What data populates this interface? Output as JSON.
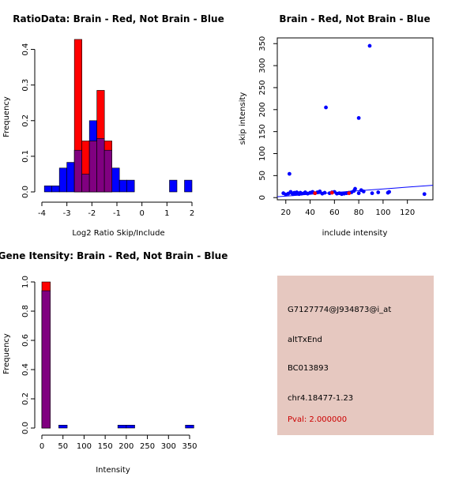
{
  "colors": {
    "red": "#ff0000",
    "blue": "#0000ff",
    "overlap": "#800080",
    "panel_bg": "#e6c8c0",
    "pval_text": "#cc0000"
  },
  "chart_data": [
    {
      "id": "ratio_hist",
      "type": "bar",
      "title": "RatioData: Brain - Red, Not Brain - Blue",
      "xlabel": "Log2 Ratio Skip/Include",
      "ylabel": "Frequency",
      "xlim": [
        -4,
        2
      ],
      "ylim": [
        0,
        0.45
      ],
      "xticks": [
        -4,
        -3,
        -2,
        -1,
        0,
        1,
        2
      ],
      "yticks": [
        0.0,
        0.1,
        0.2,
        0.3,
        0.4
      ],
      "ytick_labels": [
        "0.0",
        "0.1",
        "0.2",
        "0.3",
        "0.4"
      ],
      "bin_width": 0.3,
      "series": [
        {
          "name": "Not Brain",
          "color": "#0000ff",
          "bins": [
            {
              "x0": -3.9,
              "x1": -3.6,
              "y": 0.017
            },
            {
              "x0": -3.6,
              "x1": -3.3,
              "y": 0.017
            },
            {
              "x0": -3.3,
              "x1": -3.0,
              "y": 0.067
            },
            {
              "x0": -3.0,
              "x1": -2.7,
              "y": 0.083
            },
            {
              "x0": -2.7,
              "x1": -2.4,
              "y": 0.117
            },
            {
              "x0": -2.4,
              "x1": -2.1,
              "y": 0.05
            },
            {
              "x0": -2.1,
              "x1": -1.8,
              "y": 0.2
            },
            {
              "x0": -1.8,
              "x1": -1.5,
              "y": 0.15
            },
            {
              "x0": -1.5,
              "x1": -1.2,
              "y": 0.117
            },
            {
              "x0": -1.2,
              "x1": -0.9,
              "y": 0.067
            },
            {
              "x0": -0.9,
              "x1": -0.6,
              "y": 0.033
            },
            {
              "x0": -0.6,
              "x1": -0.3,
              "y": 0.033
            },
            {
              "x0": 1.1,
              "x1": 1.4,
              "y": 0.033
            },
            {
              "x0": 1.7,
              "x1": 2.0,
              "y": 0.033
            }
          ]
        },
        {
          "name": "Brain",
          "color": "#ff0000",
          "bins": [
            {
              "x0": -2.7,
              "x1": -2.4,
              "y": 0.428
            },
            {
              "x0": -2.4,
              "x1": -2.1,
              "y": 0.143
            },
            {
              "x0": -2.1,
              "x1": -1.8,
              "y": 0.143
            },
            {
              "x0": -1.8,
              "x1": -1.5,
              "y": 0.285
            },
            {
              "x0": -1.5,
              "x1": -1.2,
              "y": 0.143
            }
          ]
        }
      ]
    },
    {
      "id": "scatter",
      "type": "scatter",
      "title": "Brain - Red, Not Brain - Blue",
      "xlabel": "include intensity",
      "ylabel": "skip intensity",
      "xlim": [
        13,
        141
      ],
      "ylim": [
        -5,
        363
      ],
      "xticks": [
        20,
        40,
        60,
        80,
        100,
        120
      ],
      "yticks": [
        0,
        50,
        100,
        150,
        200,
        250,
        300,
        350
      ],
      "series": [
        {
          "name": "Not Brain",
          "color": "#0000ff",
          "points": [
            [
              18,
              10
            ],
            [
              20,
              7
            ],
            [
              22,
              9
            ],
            [
              23,
              54
            ],
            [
              24,
              13
            ],
            [
              25,
              10
            ],
            [
              26,
              8
            ],
            [
              27,
              11
            ],
            [
              28,
              9
            ],
            [
              29,
              12
            ],
            [
              30,
              10
            ],
            [
              31,
              8
            ],
            [
              32,
              11
            ],
            [
              33,
              9
            ],
            [
              35,
              10
            ],
            [
              36,
              12
            ],
            [
              38,
              9
            ],
            [
              40,
              11
            ],
            [
              42,
              13
            ],
            [
              44,
              10
            ],
            [
              46,
              12
            ],
            [
              48,
              14
            ],
            [
              50,
              9
            ],
            [
              52,
              11
            ],
            [
              53,
              205
            ],
            [
              56,
              10
            ],
            [
              58,
              12
            ],
            [
              60,
              13
            ],
            [
              62,
              9
            ],
            [
              64,
              10
            ],
            [
              66,
              8
            ],
            [
              68,
              9
            ],
            [
              70,
              10
            ],
            [
              72,
              11
            ],
            [
              74,
              12
            ],
            [
              76,
              15
            ],
            [
              77,
              20
            ],
            [
              80,
              181
            ],
            [
              80,
              10
            ],
            [
              82,
              17
            ],
            [
              84,
              14
            ],
            [
              89,
              345
            ],
            [
              91,
              10
            ],
            [
              96,
              12
            ],
            [
              104,
              11
            ],
            [
              105,
              13
            ],
            [
              134,
              8
            ]
          ]
        },
        {
          "name": "Brain",
          "color": "#ff0000",
          "points": [
            [
              44,
              10
            ],
            [
              58,
              11
            ],
            [
              72,
              10
            ]
          ]
        }
      ],
      "fit_line": {
        "x": [
          13,
          141
        ],
        "y": [
          2,
          28
        ],
        "color": "#0000ff"
      }
    },
    {
      "id": "gene_hist",
      "type": "bar",
      "title": "Gene Itensity: Brain - Red, Not Brain - Blue",
      "xlabel": "Intensity",
      "ylabel": "Frequency",
      "xlim": [
        0,
        350
      ],
      "ylim": [
        0,
        1.0
      ],
      "xticks": [
        0,
        50,
        100,
        150,
        200,
        250,
        300,
        350
      ],
      "yticks": [
        0.0,
        0.2,
        0.4,
        0.6,
        0.8,
        1.0
      ],
      "ytick_labels": [
        "0.0",
        "0.2",
        "0.4",
        "0.6",
        "0.8",
        "1.0"
      ],
      "series": [
        {
          "name": "Not Brain",
          "color": "#0000ff",
          "bins": [
            {
              "x0": 0,
              "x1": 20,
              "y": 0.94
            },
            {
              "x0": 40,
              "x1": 60,
              "y": 0.02
            },
            {
              "x0": 180,
              "x1": 200,
              "y": 0.02
            },
            {
              "x0": 200,
              "x1": 220,
              "y": 0.02
            },
            {
              "x0": 340,
              "x1": 360,
              "y": 0.02
            }
          ]
        },
        {
          "name": "Brain",
          "color": "#ff0000",
          "bins": [
            {
              "x0": 0,
              "x1": 20,
              "y": 1.0
            }
          ]
        }
      ]
    }
  ],
  "info": {
    "probe": "G7127774@J934873@i_at",
    "event": "altTxEnd",
    "accession": "BC013893",
    "location": "chr4.18477-1.23",
    "pval": "Pval: 2.000000"
  }
}
